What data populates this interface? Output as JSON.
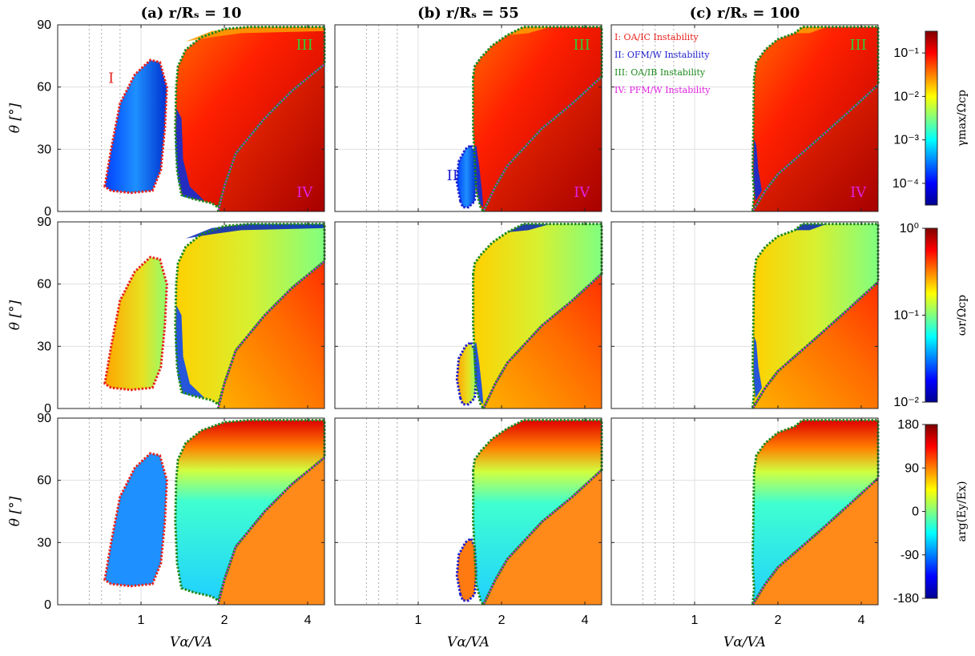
{
  "chart_data": {
    "type": "heatmap",
    "layout": "3x3 panel grid with shared colorbars per row",
    "column_titles": [
      "(a) r/Rₛ = 10",
      "(b) r/Rₛ = 55",
      "(c) r/Rₛ = 100"
    ],
    "xlabel": "Vα/VA",
    "ylabel": "θ [°]",
    "x_scale": "log",
    "xlim": [
      0.5,
      4.6
    ],
    "ylim": [
      0,
      90
    ],
    "x_ticks": [
      "1",
      "2",
      "4"
    ],
    "y_ticks": [
      "0",
      "30",
      "60",
      "90"
    ],
    "grid": true,
    "rows": [
      {
        "quantity": "γmax/Ωcp",
        "colorbar_label": "γmax/Ωcp",
        "colorbar_scale": "log",
        "colorbar_ticks": [
          "10⁻¹",
          "10⁻²",
          "10⁻³",
          "10⁻⁴"
        ]
      },
      {
        "quantity": "ωr/Ωcp",
        "colorbar_label": "ωr/Ωcp",
        "colorbar_scale": "log",
        "colorbar_ticks": [
          "10⁰",
          "10⁻¹",
          "10⁻²"
        ]
      },
      {
        "quantity": "arg(Ey/Ex)",
        "colorbar_label": "arg(Ey/Ex)",
        "colorbar_scale": "linear",
        "colorbar_ticks": [
          "180",
          "90",
          "0",
          "-90",
          "-180"
        ]
      }
    ],
    "regions": [
      {
        "label": "I",
        "name": "OA/IC Instability",
        "color": "#e8231e"
      },
      {
        "label": "II",
        "name": "OFM/W Instability",
        "color": "#1f1fd0"
      },
      {
        "label": "III",
        "name": "OA/IB Instability",
        "color": "#1d8a1d"
      },
      {
        "label": "IV",
        "name": "PFM/W Instability",
        "color": "#e020e0"
      }
    ],
    "legend_text": [
      "I:   OA/IC Instability",
      "II:  OFM/W Instability",
      "III: OA/IB Instability",
      "IV: PFM/W Instability"
    ],
    "legend_position": "top-right of panel (b)",
    "panel_region_labels": {
      "a_top": [
        "I",
        "III",
        "IV"
      ],
      "b_top": [
        "II",
        "III",
        "IV"
      ],
      "c_top": [
        "III",
        "IV"
      ]
    },
    "region_boundaries_deg": {
      "r10": {
        "I": {
          "x_range": [
            0.73,
            1.25
          ],
          "theta_range": [
            9,
            73
          ]
        },
        "III": {
          "x_min_at_theta60": 1.32,
          "theta_range": [
            4,
            90
          ]
        },
        "IV_boundary": [
          [
            1.9,
            0
          ],
          [
            2.2,
            28
          ],
          [
            2.8,
            45
          ],
          [
            4.6,
            71
          ]
        ]
      },
      "r55": {
        "II": {
          "x_range": [
            1.38,
            1.62
          ],
          "theta_range": [
            2,
            32
          ]
        },
        "III": {
          "x_min": 1.57,
          "theta_range": [
            0,
            90
          ]
        },
        "IV_boundary": [
          [
            1.72,
            0
          ],
          [
            2.1,
            22
          ],
          [
            2.8,
            40
          ],
          [
            4.6,
            65
          ]
        ]
      },
      "r100": {
        "III": {
          "x_min": 1.62,
          "theta_range": [
            5,
            90
          ]
        },
        "IV_boundary": [
          [
            1.62,
            0
          ],
          [
            2.0,
            18
          ],
          [
            2.8,
            35
          ],
          [
            4.6,
            61
          ]
        ]
      }
    }
  },
  "colors": {
    "region_I": "#e8231e",
    "region_II": "#1f1fd0",
    "region_III": "#1d8a1d",
    "region_IV": "#e020e0"
  }
}
